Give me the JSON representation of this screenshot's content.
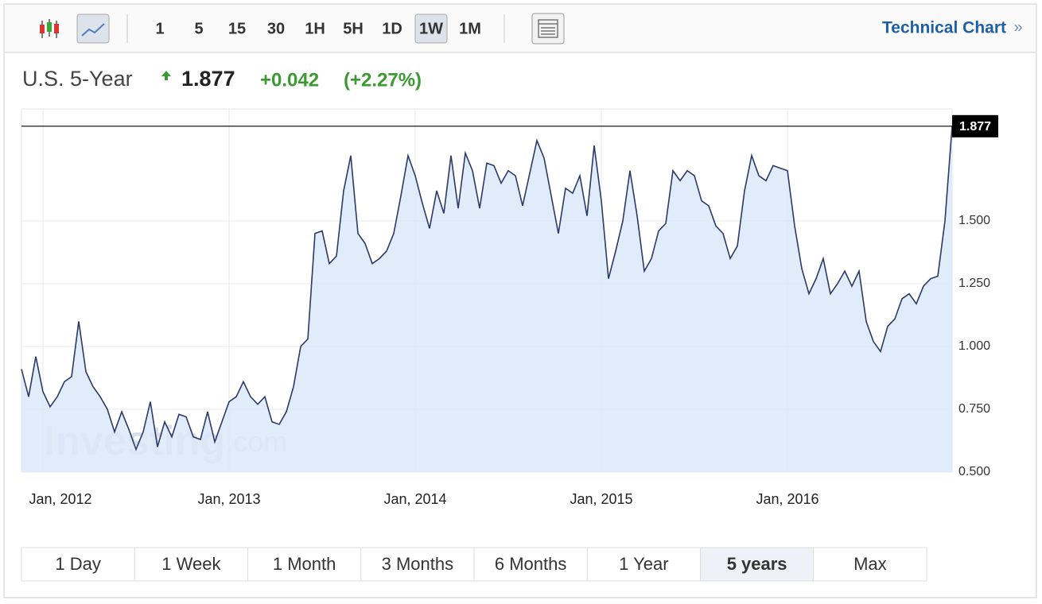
{
  "toolbar": {
    "intervals": [
      "1",
      "5",
      "15",
      "30",
      "1H",
      "5H",
      "1D",
      "1W",
      "1M"
    ],
    "active_interval": "1W",
    "link": "Technical Chart",
    "link_arrow": "»"
  },
  "header": {
    "name": "U.S. 5-Year",
    "price": "1.877",
    "change": "+0.042",
    "change_pct": "(+2.27%)"
  },
  "watermark": {
    "brand": "Investing",
    "suffix": ".com"
  },
  "ranges": {
    "buttons": [
      "1 Day",
      "1 Week",
      "1 Month",
      "3 Months",
      "6 Months",
      "1 Year",
      "5 years",
      "Max"
    ],
    "active": "5 years"
  },
  "chart_data": {
    "type": "area",
    "color": "#2b3a67",
    "fill": "#dbe9f9",
    "categories": [
      null,
      null,
      null,
      "Jan, 2012",
      null,
      null,
      null,
      null,
      null,
      null,
      null,
      null,
      null,
      null,
      null,
      null,
      null,
      null,
      null,
      null,
      null,
      null,
      null,
      null,
      null,
      null,
      null,
      null,
      null,
      "Jan, 2013",
      null,
      null,
      null,
      null,
      null,
      null,
      null,
      null,
      null,
      null,
      null,
      null,
      null,
      null,
      null,
      null,
      null,
      null,
      null,
      null,
      null,
      null,
      null,
      null,
      null,
      "Jan, 2014",
      null,
      null,
      null,
      null,
      null,
      null,
      null,
      null,
      null,
      null,
      null,
      null,
      null,
      null,
      null,
      null,
      null,
      null,
      null,
      null,
      null,
      null,
      null,
      null,
      null,
      "Jan, 2015",
      null,
      null,
      null,
      null,
      null,
      null,
      null,
      null,
      null,
      null,
      null,
      null,
      null,
      null,
      null,
      null,
      null,
      null,
      null,
      null,
      null,
      null,
      null,
      null,
      null,
      "Jan, 2016",
      null,
      null,
      null,
      null,
      null,
      null,
      null,
      null,
      null,
      null,
      null,
      null,
      null,
      null,
      null,
      null,
      null,
      null,
      null,
      null,
      null,
      null,
      null
    ],
    "values": [
      0.91,
      0.8,
      0.96,
      0.82,
      0.76,
      0.8,
      0.86,
      0.88,
      1.1,
      0.9,
      0.84,
      0.8,
      0.75,
      0.66,
      0.74,
      0.67,
      0.59,
      0.66,
      0.78,
      0.6,
      0.7,
      0.64,
      0.73,
      0.72,
      0.64,
      0.63,
      0.74,
      0.62,
      0.7,
      0.78,
      0.8,
      0.86,
      0.8,
      0.77,
      0.8,
      0.7,
      0.69,
      0.74,
      0.84,
      1.0,
      1.03,
      1.45,
      1.46,
      1.33,
      1.36,
      1.62,
      1.76,
      1.45,
      1.41,
      1.33,
      1.35,
      1.38,
      1.45,
      1.6,
      1.76,
      1.68,
      1.57,
      1.47,
      1.62,
      1.53,
      1.76,
      1.55,
      1.77,
      1.7,
      1.55,
      1.73,
      1.72,
      1.65,
      1.7,
      1.68,
      1.56,
      1.69,
      1.82,
      1.75,
      1.6,
      1.45,
      1.63,
      1.61,
      1.68,
      1.52,
      1.8,
      1.58,
      1.27,
      1.38,
      1.5,
      1.7,
      1.52,
      1.3,
      1.35,
      1.46,
      1.49,
      1.7,
      1.66,
      1.7,
      1.68,
      1.58,
      1.56,
      1.48,
      1.45,
      1.35,
      1.4,
      1.62,
      1.76,
      1.68,
      1.66,
      1.72,
      1.71,
      1.7,
      1.48,
      1.31,
      1.21,
      1.27,
      1.35,
      1.21,
      1.25,
      1.3,
      1.24,
      1.3,
      1.1,
      1.02,
      0.98,
      1.08,
      1.11,
      1.19,
      1.21,
      1.17,
      1.24,
      1.27,
      1.28,
      1.5,
      1.877
    ],
    "ylim": [
      0.5,
      1.946
    ],
    "yticks": [
      {
        "value": 0.5,
        "label": "0.500"
      },
      {
        "value": 0.75,
        "label": "0.750"
      },
      {
        "value": 1,
        "label": "1.000"
      },
      {
        "value": 1.25,
        "label": "1.250"
      },
      {
        "value": 1.5,
        "label": "1.500"
      }
    ],
    "grid": true,
    "last_value_line": true
  }
}
